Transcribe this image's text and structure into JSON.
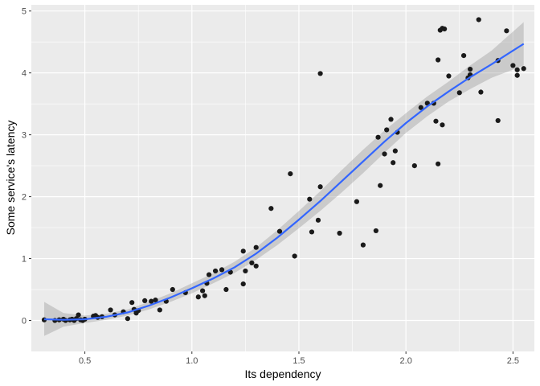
{
  "chart_data": {
    "type": "scatter",
    "title": "",
    "xlabel": "Its dependency",
    "ylabel": "Some service's latency",
    "xlim": [
      0.25,
      2.6
    ],
    "ylim": [
      -0.5,
      5.1
    ],
    "xticks": [
      0.5,
      1.0,
      1.5,
      2.0,
      2.5
    ],
    "xtick_labels": [
      "0.5",
      "1.0",
      "1.5",
      "2.0",
      "2.5"
    ],
    "yticks": [
      0,
      1,
      2,
      3,
      4,
      5
    ],
    "ytick_labels": [
      "0",
      "1",
      "2",
      "3",
      "4",
      "5"
    ],
    "grid": true,
    "colors": {
      "panel": "#ebebeb",
      "grid": "#ffffff",
      "point": "#1a1a1a",
      "smooth_line": "#3366ff",
      "ribbon": "#999999"
    },
    "points": [
      {
        "x": 0.31,
        "y": 0.01
      },
      {
        "x": 0.36,
        "y": 0.0
      },
      {
        "x": 0.38,
        "y": 0.01
      },
      {
        "x": 0.4,
        "y": 0.02
      },
      {
        "x": 0.41,
        "y": 0.0
      },
      {
        "x": 0.43,
        "y": 0.01
      },
      {
        "x": 0.44,
        "y": 0.02
      },
      {
        "x": 0.45,
        "y": 0.0
      },
      {
        "x": 0.46,
        "y": 0.03
      },
      {
        "x": 0.47,
        "y": 0.09
      },
      {
        "x": 0.48,
        "y": 0.01
      },
      {
        "x": 0.49,
        "y": 0.0
      },
      {
        "x": 0.5,
        "y": 0.02
      },
      {
        "x": 0.54,
        "y": 0.07
      },
      {
        "x": 0.55,
        "y": 0.08
      },
      {
        "x": 0.56,
        "y": 0.05
      },
      {
        "x": 0.58,
        "y": 0.06
      },
      {
        "x": 0.62,
        "y": 0.17
      },
      {
        "x": 0.64,
        "y": 0.09
      },
      {
        "x": 0.68,
        "y": 0.14
      },
      {
        "x": 0.7,
        "y": 0.03
      },
      {
        "x": 0.72,
        "y": 0.29
      },
      {
        "x": 0.73,
        "y": 0.18
      },
      {
        "x": 0.74,
        "y": 0.12
      },
      {
        "x": 0.75,
        "y": 0.16
      },
      {
        "x": 0.78,
        "y": 0.32
      },
      {
        "x": 0.81,
        "y": 0.31
      },
      {
        "x": 0.83,
        "y": 0.33
      },
      {
        "x": 0.85,
        "y": 0.17
      },
      {
        "x": 0.88,
        "y": 0.31
      },
      {
        "x": 0.91,
        "y": 0.5
      },
      {
        "x": 0.97,
        "y": 0.45
      },
      {
        "x": 1.03,
        "y": 0.38
      },
      {
        "x": 1.05,
        "y": 0.48
      },
      {
        "x": 1.06,
        "y": 0.4
      },
      {
        "x": 1.07,
        "y": 0.6
      },
      {
        "x": 1.08,
        "y": 0.74
      },
      {
        "x": 1.11,
        "y": 0.8
      },
      {
        "x": 1.14,
        "y": 0.82
      },
      {
        "x": 1.16,
        "y": 0.5
      },
      {
        "x": 1.18,
        "y": 0.78
      },
      {
        "x": 1.24,
        "y": 0.59
      },
      {
        "x": 1.24,
        "y": 1.12
      },
      {
        "x": 1.25,
        "y": 0.8
      },
      {
        "x": 1.28,
        "y": 0.93
      },
      {
        "x": 1.3,
        "y": 0.88
      },
      {
        "x": 1.3,
        "y": 1.18
      },
      {
        "x": 1.37,
        "y": 1.81
      },
      {
        "x": 1.41,
        "y": 1.44
      },
      {
        "x": 1.46,
        "y": 2.37
      },
      {
        "x": 1.48,
        "y": 1.04
      },
      {
        "x": 1.55,
        "y": 1.96
      },
      {
        "x": 1.56,
        "y": 1.43
      },
      {
        "x": 1.59,
        "y": 1.62
      },
      {
        "x": 1.6,
        "y": 2.16
      },
      {
        "x": 1.6,
        "y": 3.99
      },
      {
        "x": 1.69,
        "y": 1.41
      },
      {
        "x": 1.77,
        "y": 1.92
      },
      {
        "x": 1.8,
        "y": 1.22
      },
      {
        "x": 1.86,
        "y": 1.45
      },
      {
        "x": 1.87,
        "y": 2.96
      },
      {
        "x": 1.88,
        "y": 2.18
      },
      {
        "x": 1.9,
        "y": 2.69
      },
      {
        "x": 1.91,
        "y": 3.08
      },
      {
        "x": 1.93,
        "y": 3.25
      },
      {
        "x": 1.94,
        "y": 2.55
      },
      {
        "x": 1.95,
        "y": 2.74
      },
      {
        "x": 1.96,
        "y": 3.04
      },
      {
        "x": 2.04,
        "y": 2.5
      },
      {
        "x": 2.07,
        "y": 3.44
      },
      {
        "x": 2.1,
        "y": 3.51
      },
      {
        "x": 2.13,
        "y": 3.51
      },
      {
        "x": 2.14,
        "y": 3.22
      },
      {
        "x": 2.15,
        "y": 2.53
      },
      {
        "x": 2.15,
        "y": 4.21
      },
      {
        "x": 2.16,
        "y": 4.69
      },
      {
        "x": 2.17,
        "y": 3.16
      },
      {
        "x": 2.17,
        "y": 4.72
      },
      {
        "x": 2.18,
        "y": 4.71
      },
      {
        "x": 2.2,
        "y": 3.95
      },
      {
        "x": 2.25,
        "y": 3.68
      },
      {
        "x": 2.27,
        "y": 4.28
      },
      {
        "x": 2.29,
        "y": 3.92
      },
      {
        "x": 2.3,
        "y": 4.06
      },
      {
        "x": 2.3,
        "y": 3.97
      },
      {
        "x": 2.34,
        "y": 4.86
      },
      {
        "x": 2.35,
        "y": 3.69
      },
      {
        "x": 2.43,
        "y": 4.2
      },
      {
        "x": 2.43,
        "y": 3.23
      },
      {
        "x": 2.47,
        "y": 4.68
      },
      {
        "x": 2.5,
        "y": 4.12
      },
      {
        "x": 2.52,
        "y": 4.05
      },
      {
        "x": 2.52,
        "y": 3.96
      },
      {
        "x": 2.55,
        "y": 4.07
      }
    ],
    "smooth": {
      "x": [
        0.31,
        0.4,
        0.5,
        0.6,
        0.7,
        0.8,
        0.9,
        1.0,
        1.1,
        1.2,
        1.3,
        1.4,
        1.5,
        1.6,
        1.7,
        1.8,
        1.9,
        2.0,
        2.1,
        2.2,
        2.3,
        2.4,
        2.55
      ],
      "y": [
        0.02,
        0.01,
        0.02,
        0.06,
        0.13,
        0.24,
        0.37,
        0.52,
        0.68,
        0.86,
        1.08,
        1.34,
        1.63,
        1.93,
        2.25,
        2.57,
        2.89,
        3.19,
        3.46,
        3.7,
        3.93,
        4.14,
        4.47
      ],
      "lower": [
        -0.25,
        -0.1,
        -0.04,
        0.01,
        0.08,
        0.18,
        0.3,
        0.44,
        0.6,
        0.77,
        0.98,
        1.22,
        1.49,
        1.77,
        2.07,
        2.38,
        2.71,
        3.03,
        3.3,
        3.54,
        3.74,
        3.92,
        4.12
      ],
      "upper": [
        0.3,
        0.12,
        0.08,
        0.11,
        0.18,
        0.3,
        0.44,
        0.6,
        0.76,
        0.95,
        1.18,
        1.46,
        1.77,
        2.09,
        2.43,
        2.76,
        3.07,
        3.35,
        3.62,
        3.86,
        4.12,
        4.36,
        4.82
      ]
    }
  }
}
